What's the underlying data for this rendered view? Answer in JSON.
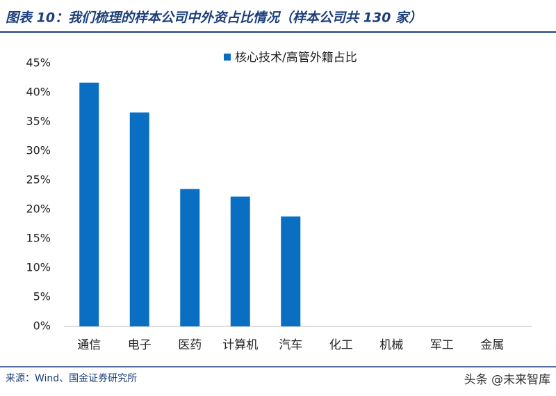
{
  "chart_data": {
    "type": "bar",
    "title": "图表 10：我们梳理的样本公司中外资占比情况（样本公司共 130 家）",
    "source": "来源：Wind、国金证券研究所",
    "watermark": "头条 @未来智库",
    "series": [
      {
        "name": "核心技术/高管外籍占比",
        "color": "#0a6fc2",
        "values": [
          41.7,
          36.6,
          23.5,
          22.2,
          18.8,
          0,
          0,
          0,
          0
        ]
      }
    ],
    "categories": [
      "通信",
      "电子",
      "医药",
      "计算机",
      "汽车",
      "化工",
      "机械",
      "军工",
      "金属"
    ],
    "ylim": [
      0,
      45
    ],
    "yticks": [
      {
        "value": 0,
        "label": "0%"
      },
      {
        "value": 5,
        "label": "5%"
      },
      {
        "value": 10,
        "label": "10%"
      },
      {
        "value": 15,
        "label": "15%"
      },
      {
        "value": 20,
        "label": "20%"
      },
      {
        "value": 25,
        "label": "25%"
      },
      {
        "value": 30,
        "label": "30%"
      },
      {
        "value": 35,
        "label": "35%"
      },
      {
        "value": 40,
        "label": "40%"
      },
      {
        "value": 45,
        "label": "45%"
      }
    ],
    "legend": "top"
  }
}
